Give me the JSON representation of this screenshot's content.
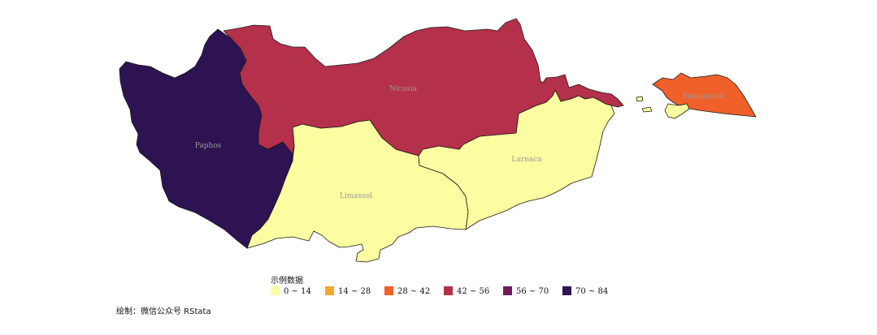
{
  "map": {
    "regions": [
      {
        "id": "paphos",
        "name": "Paphos",
        "color": "#2d1352",
        "show_label": true,
        "label_color": "#9a9a9a"
      },
      {
        "id": "nicosia",
        "name": "Nicosia",
        "color": "#b5304a",
        "show_label": true,
        "label_color": "#9a9a9a"
      },
      {
        "id": "limassol",
        "name": "Limassol",
        "color": "#fbfda0",
        "show_label": true,
        "label_color": "#9a9a9a"
      },
      {
        "id": "larnaca",
        "name": "Larnaca",
        "color": "#fbfda0",
        "show_label": true,
        "label_color": "#9a9a9a"
      },
      {
        "id": "famagusta",
        "name": "Famagusta",
        "color": "#f0602a",
        "show_label": true,
        "label_color": "#9a9a9a"
      }
    ]
  },
  "legend": {
    "title": "示例数据",
    "items": [
      {
        "label": "0 ~ 14",
        "color": "#fbfda0"
      },
      {
        "label": "14 ~ 28",
        "color": "#f9a62b"
      },
      {
        "label": "28 ~ 42",
        "color": "#f0602a"
      },
      {
        "label": "42 ~ 56",
        "color": "#b5304a"
      },
      {
        "label": "56 ~ 70",
        "color": "#6f1a5e"
      },
      {
        "label": "70 ~ 84",
        "color": "#2d1352"
      }
    ]
  },
  "credit": "绘制：微信公众号 RStata"
}
